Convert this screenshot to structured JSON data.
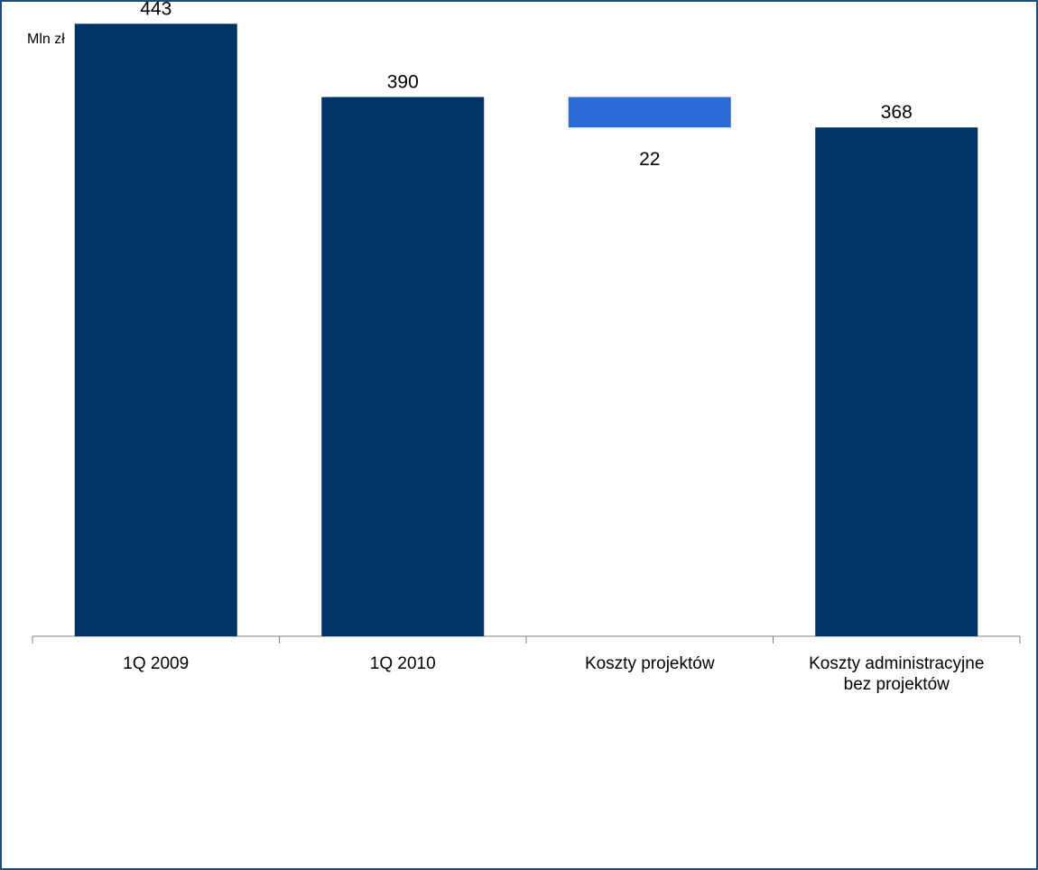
{
  "chart_data": {
    "type": "bar",
    "subtype": "waterfall",
    "unit_label": "Mln zł",
    "categories": [
      [
        "1Q 2009"
      ],
      [
        "1Q 2010"
      ],
      [
        "Koszty projektów"
      ],
      [
        "Koszty administracyjne",
        "bez projektów"
      ]
    ],
    "bars": [
      {
        "category": "1Q 2009",
        "kind": "total",
        "value": 443,
        "label": "443"
      },
      {
        "category": "1Q 2010",
        "kind": "total",
        "value": 390,
        "label": "390"
      },
      {
        "category": "Koszty projektów",
        "kind": "decrease",
        "value": 22,
        "label": "22"
      },
      {
        "category": "Koszty administracyjne bez projektów",
        "kind": "total",
        "value": 368,
        "label": "368"
      }
    ],
    "ylim": [
      0,
      475
    ],
    "grid": false,
    "legend": "none",
    "colors": {
      "total": "#003366",
      "decrease": "#2b6bd6",
      "frame": "#1f4e79",
      "axis": "#808080"
    }
  }
}
